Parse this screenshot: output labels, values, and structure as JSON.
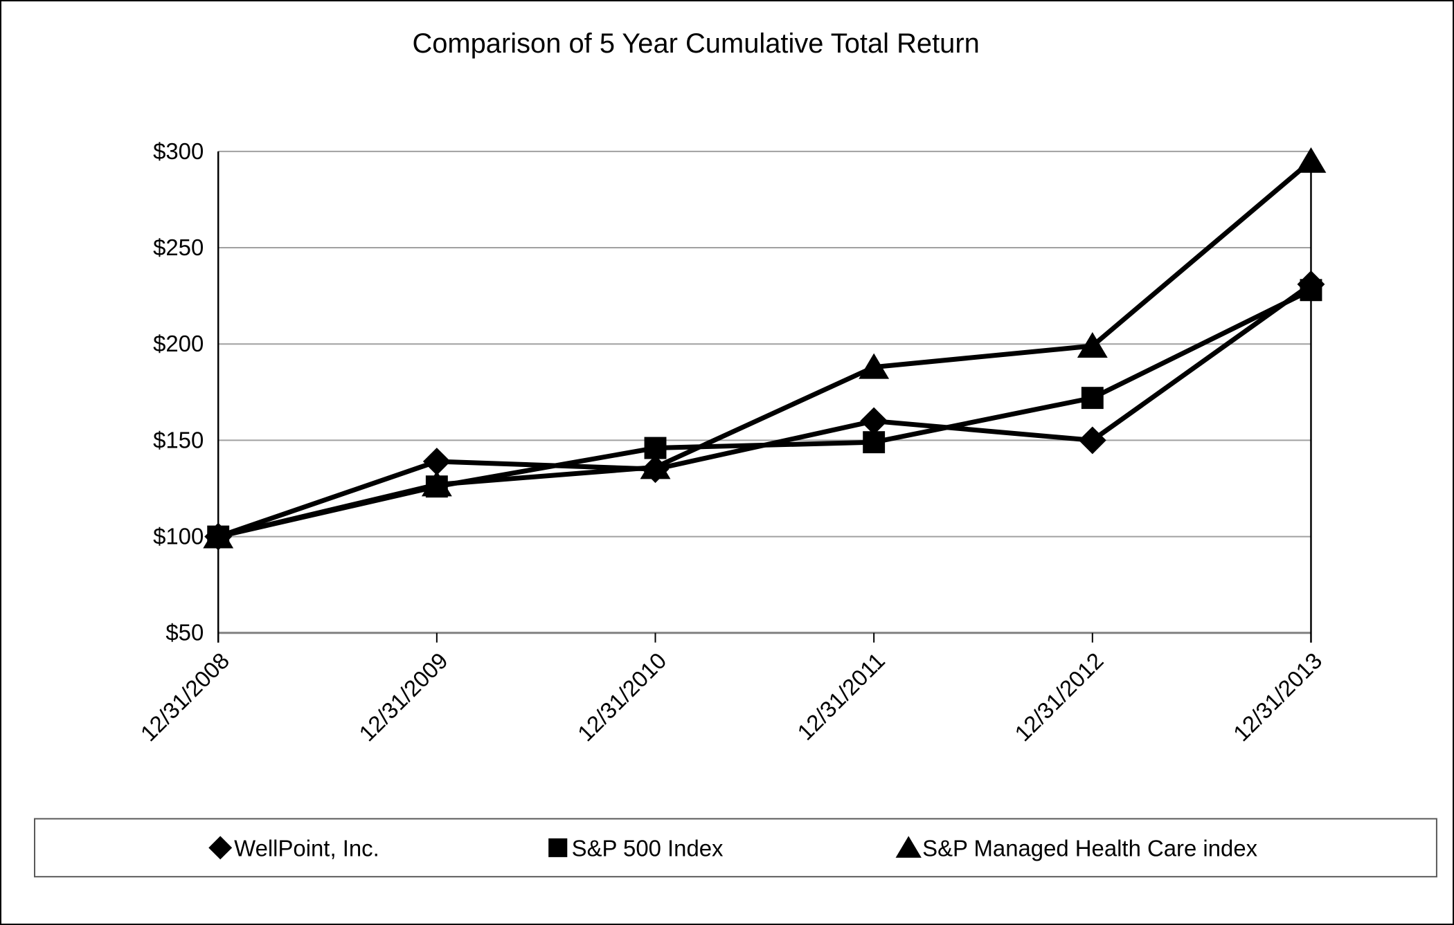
{
  "title": "Comparison of 5 Year Cumulative Total Return",
  "chart_data": {
    "type": "line",
    "categories": [
      "12/31/2008",
      "12/31/2009",
      "12/31/2010",
      "12/31/2011",
      "12/31/2012",
      "12/31/2013"
    ],
    "series": [
      {
        "name": "WellPoint, Inc.",
        "marker": "diamond",
        "values": [
          100,
          139,
          135,
          160,
          150,
          231
        ]
      },
      {
        "name": "S&P 500 Index",
        "marker": "square",
        "values": [
          100,
          126,
          146,
          149,
          172,
          228
        ]
      },
      {
        "name": "S&P Managed Health Care index",
        "marker": "triangle",
        "values": [
          100,
          127,
          136,
          188,
          199,
          295
        ]
      }
    ],
    "ylim": [
      50,
      300
    ],
    "ytick_step": 50,
    "ytick_labels": [
      "$50",
      "$100",
      "$150",
      "$200",
      "$250",
      "$300"
    ],
    "xlabel": "",
    "ylabel": "",
    "grid": true,
    "legend_position": "bottom",
    "colors": {
      "series_line": "#000000",
      "marker_fill": "#000000",
      "gridline": "#a0a0a0",
      "baseline": "#808080",
      "axis": "#000000",
      "legend_border": "#595959",
      "text": "#000000"
    }
  }
}
